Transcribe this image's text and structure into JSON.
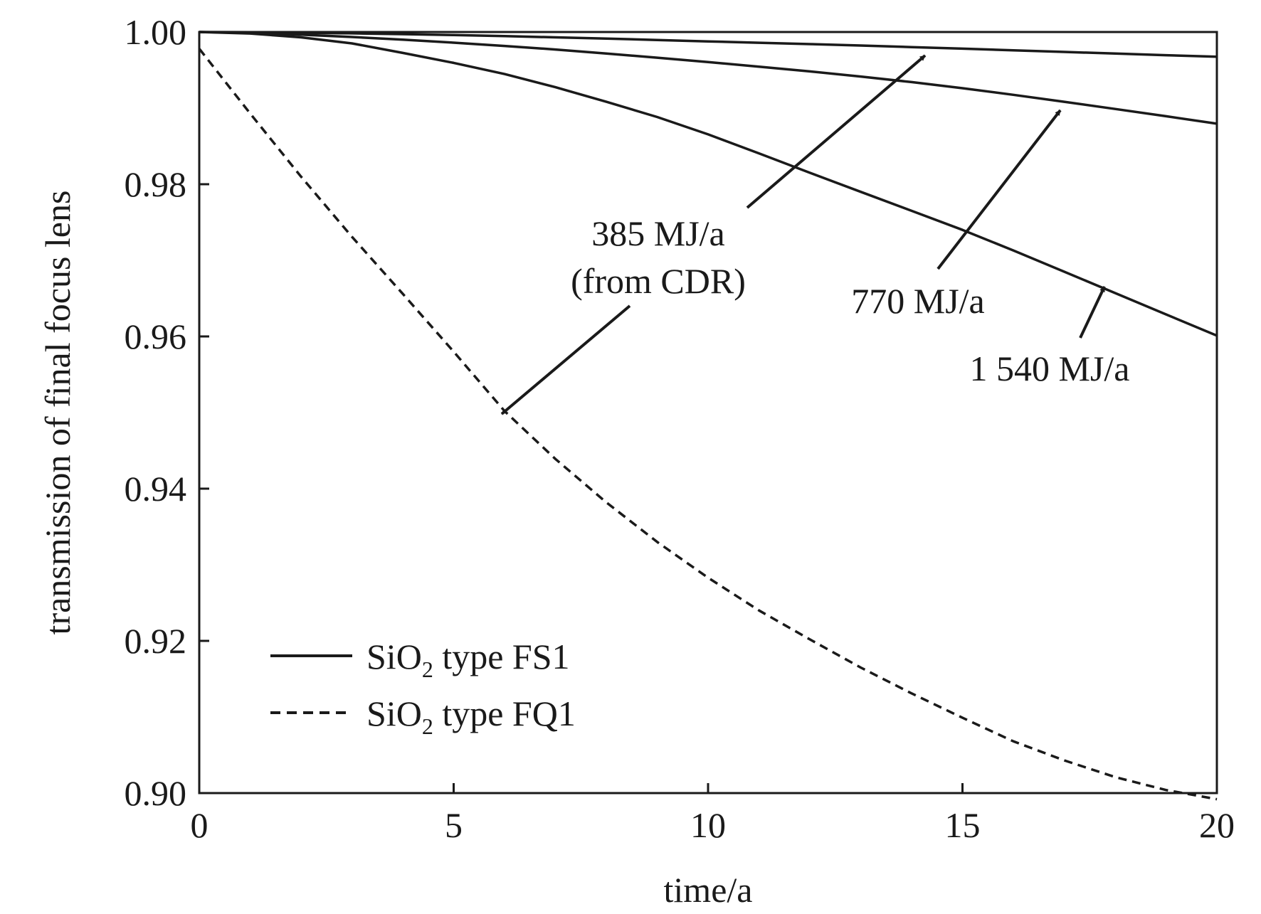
{
  "chart_data": {
    "type": "line",
    "title": "",
    "xlabel": "time/a",
    "ylabel": "transmission of final focus lens",
    "xlim": [
      0,
      20
    ],
    "ylim": [
      0.9,
      1.0
    ],
    "xticks": [
      0,
      5,
      10,
      15,
      20
    ],
    "yticks": [
      0.9,
      0.92,
      0.94,
      0.96,
      0.98,
      1.0
    ],
    "xtick_labels": [
      "0",
      "5",
      "10",
      "15",
      "20"
    ],
    "ytick_labels": [
      "0.90",
      "0.92",
      "0.94",
      "0.96",
      "0.98",
      "1.00"
    ],
    "grid": false,
    "legend": {
      "placement": "lower-left",
      "entries": [
        {
          "prefix": "SiO",
          "sub": "2",
          "suffix": " type FS1",
          "style": "solid"
        },
        {
          "prefix": "SiO",
          "sub": "2",
          "suffix": " type FQ1",
          "style": "dashed"
        }
      ]
    },
    "x": [
      0,
      1,
      2,
      3,
      4,
      5,
      6,
      7,
      8,
      9,
      10,
      11,
      12,
      13,
      14,
      15,
      16,
      17,
      18,
      19,
      20
    ],
    "series": [
      {
        "style": "solid",
        "values": [
          1.0,
          0.99997,
          0.9999,
          0.99982,
          0.99972,
          0.9996,
          0.99946,
          0.9993,
          0.99913,
          0.99895,
          0.99877,
          0.99859,
          0.99841,
          0.99822,
          0.99802,
          0.99781,
          0.9976,
          0.99738,
          0.99717,
          0.99695,
          0.99675
        ]
      },
      {
        "style": "solid",
        "values": [
          1.0,
          0.9999,
          0.99965,
          0.99935,
          0.999,
          0.9986,
          0.99817,
          0.9977,
          0.99718,
          0.99663,
          0.99605,
          0.99545,
          0.99482,
          0.99415,
          0.99342,
          0.99262,
          0.99175,
          0.99083,
          0.98989,
          0.98893,
          0.98795
        ]
      },
      {
        "style": "solid",
        "values": [
          1.0,
          0.9998,
          0.9993,
          0.9985,
          0.99725,
          0.99594,
          0.99448,
          0.99275,
          0.99083,
          0.98883,
          0.98655,
          0.98406,
          0.9815,
          0.979,
          0.9765,
          0.974,
          0.9713,
          0.9685,
          0.9657,
          0.9629,
          0.9601
        ]
      },
      {
        "style": "dashed",
        "values": [
          0.9978,
          0.9893,
          0.981,
          0.9731,
          0.9656,
          0.958,
          0.9502,
          0.9439,
          0.9382,
          0.933,
          0.9283,
          0.924,
          0.9202,
          0.9165,
          0.9131,
          0.9099,
          0.9068,
          0.9043,
          0.9021,
          0.9004,
          0.8992
        ]
      }
    ],
    "annotations": [
      {
        "lines": [
          "385 MJ/a",
          "(from CDR)"
        ]
      },
      {
        "lines": [
          "770 MJ/a"
        ]
      },
      {
        "lines": [
          "1 540 MJ/a"
        ]
      }
    ]
  }
}
